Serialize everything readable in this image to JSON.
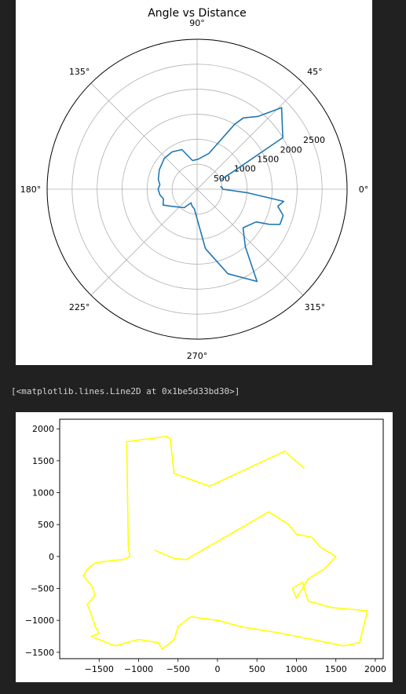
{
  "output_text": "[<matplotlib.lines.Line2D at 0x1be5d33bd30>]",
  "chart_data": [
    {
      "type": "line",
      "projection": "polar",
      "title": "Angle vs Distance",
      "theta_tick_labels": [
        "0°",
        "45°",
        "90°",
        "135°",
        "180°",
        "225°",
        "270°",
        "315°"
      ],
      "r_tick_values": [
        500,
        1000,
        1500,
        2000,
        2500
      ],
      "r_tick_labels": [
        "500",
        "1000",
        "1500",
        "2000",
        "2500"
      ],
      "rlim": [
        0,
        3000
      ],
      "grid": true,
      "color": "#1f77b4",
      "series": [
        {
          "theta_deg": [
            22,
            26,
            31,
            44,
            50,
            57,
            60,
            72,
            88,
            99,
            111,
            124,
            137,
            153,
            166,
            173,
            180,
            189,
            196,
            205,
            215,
            235,
            246,
            253,
            262,
            278,
            290,
            303,
            310,
            320,
            331,
            334,
            337,
            343,
            348,
            352,
            356,
            0,
            4,
            7
          ],
          "r": [
            520,
            800,
            2000,
            2350,
            1900,
            1700,
            1500,
            750,
            600,
            580,
            850,
            900,
            900,
            850,
            800,
            750,
            780,
            750,
            700,
            750,
            600,
            450,
            300,
            350,
            400,
            1200,
            1800,
            2200,
            1500,
            1200,
            1350,
            1600,
            1800,
            1800,
            1650,
            1750,
            1000,
            510,
            500,
            470
          ]
        }
      ]
    },
    {
      "type": "line",
      "title": "",
      "xlabel": "",
      "ylabel": "",
      "xlim": [
        -2000,
        2100
      ],
      "ylim": [
        -1600,
        2150
      ],
      "x_ticks": [
        -1500,
        -1000,
        -500,
        0,
        500,
        1000,
        1500,
        2000
      ],
      "x_tick_labels": [
        "−1500",
        "−1000",
        "−500",
        "0",
        "500",
        "1000",
        "1500",
        "2000"
      ],
      "y_ticks": [
        -1500,
        -1000,
        -500,
        0,
        500,
        1000,
        1500,
        2000
      ],
      "y_tick_labels": [
        "−1500",
        "−1000",
        "−500",
        "0",
        "500",
        "1000",
        "1500",
        "2000"
      ],
      "grid": false,
      "color": "#ffff00",
      "series": [
        {
          "x": [
            1100,
            850,
            -100,
            -550,
            -600,
            -650,
            -1150,
            -1130,
            -1120,
            -1110,
            -1200,
            -1320,
            -1550,
            -1650,
            -1700,
            -1600,
            -1550,
            -1650,
            -1600,
            -1550,
            -1500,
            -1600,
            -1500,
            -1300,
            -1000,
            -750,
            -700,
            -550,
            -500,
            -400,
            -350,
            -300,
            0,
            300,
            800,
            1200,
            1600,
            1800,
            1850,
            1900,
            1450,
            1150,
            1100,
            1080,
            950,
            1000,
            1150,
            1350,
            1500,
            1300,
            1200,
            1000,
            900,
            650,
            300,
            -400,
            -550,
            -800
          ],
          "y": [
            1380,
            1650,
            1100,
            1300,
            1850,
            1880,
            1800,
            150,
            80,
            0,
            -50,
            -60,
            -100,
            -200,
            -300,
            -450,
            -600,
            -750,
            -900,
            -1100,
            -1200,
            -1250,
            -1300,
            -1400,
            -1300,
            -1350,
            -1450,
            -1300,
            -1100,
            -1000,
            -950,
            -950,
            -1000,
            -1100,
            -1200,
            -1300,
            -1400,
            -1350,
            -1100,
            -850,
            -800,
            -700,
            -500,
            -400,
            -500,
            -650,
            -350,
            -200,
            0,
            150,
            300,
            350,
            500,
            700,
            450,
            -50,
            -30,
            100
          ]
        }
      ]
    }
  ]
}
